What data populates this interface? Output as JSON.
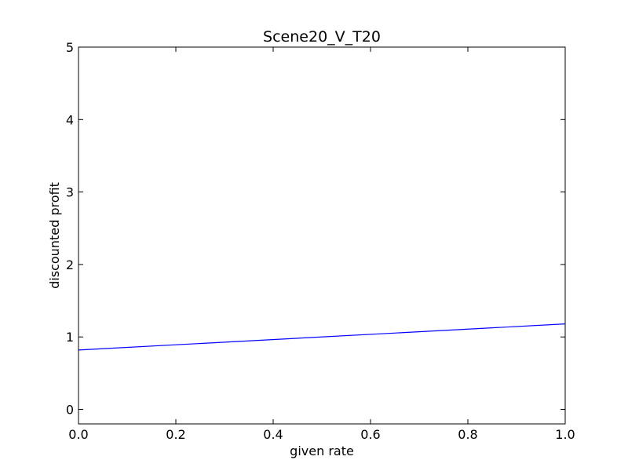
{
  "chart_data": {
    "type": "line",
    "title": "Scene20_V_T20",
    "xlabel": "given rate",
    "ylabel": "discounted profit",
    "xlim": [
      0.0,
      1.0
    ],
    "ylim": [
      -0.2,
      5.0
    ],
    "xticks": [
      0.0,
      0.2,
      0.4,
      0.6,
      0.8,
      1.0
    ],
    "xtick_labels": [
      "0.0",
      "0.2",
      "0.4",
      "0.6",
      "0.8",
      "1.0"
    ],
    "yticks": [
      0,
      1,
      2,
      3,
      4,
      5
    ],
    "ytick_labels": [
      "0",
      "1",
      "2",
      "3",
      "4",
      "5"
    ],
    "grid": false,
    "series": [
      {
        "color": "#0000ff",
        "x": [
          0.0,
          1.0
        ],
        "y": [
          0.82,
          1.18
        ]
      }
    ]
  }
}
